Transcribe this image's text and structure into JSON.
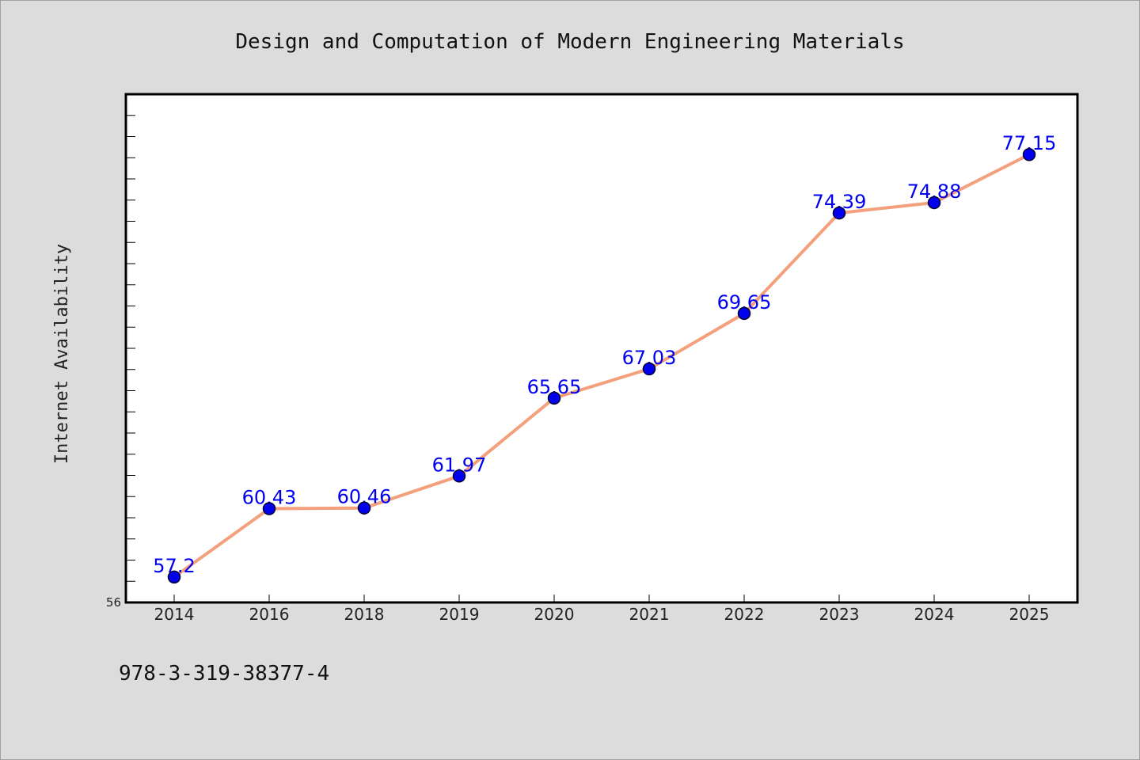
{
  "chart_data": {
    "type": "line",
    "title": "Design and Computation of Modern Engineering Materials",
    "xlabel": "",
    "ylabel": "Internet Availability",
    "categories": [
      "2014",
      "2016",
      "2018",
      "2019",
      "2020",
      "2021",
      "2022",
      "2023",
      "2024",
      "2025"
    ],
    "series": [
      {
        "values": [
          57.2,
          60.43,
          60.46,
          61.97,
          65.65,
          67.03,
          69.65,
          74.39,
          74.88,
          77.15
        ],
        "labels": [
          "57.2",
          "60.43",
          "60.46",
          "61.97",
          "65.65",
          "67.03",
          "69.65",
          "74.39",
          "74.88",
          "77.15"
        ]
      }
    ],
    "ylim": [
      56,
      80
    ],
    "ytick_labels": [
      "56"
    ],
    "grid": false,
    "legend": "none",
    "colors": {
      "line": "#f4a07c",
      "marker": "#0000ee",
      "marker_edge": "#000033",
      "label": "#0000ee",
      "plot_bg": "#ffffff",
      "page_bg": "#dcdcdc"
    }
  },
  "footer": {
    "isbn": "978-3-319-38377-4"
  }
}
